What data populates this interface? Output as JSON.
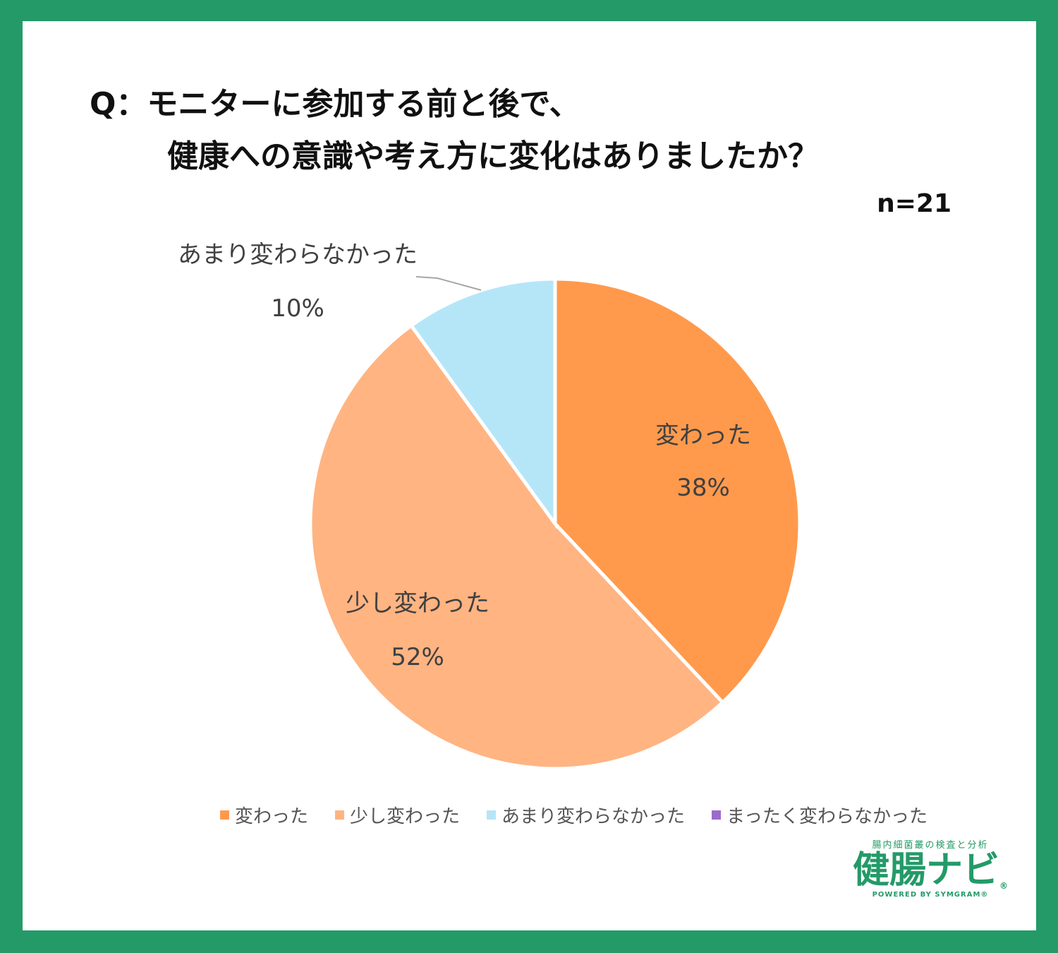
{
  "title": {
    "line1": "Q：モニターに参加する前と後で、",
    "line2": "健康への意識や考え方に変化はありましたか？",
    "n": "n=21"
  },
  "chart_data": {
    "type": "pie",
    "slices": [
      {
        "label": "変わった",
        "value": 38,
        "value_label": "38%",
        "color": "#ff9a4d"
      },
      {
        "label": "少し変わった",
        "value": 52,
        "value_label": "52%",
        "color": "#ffb482"
      },
      {
        "label": "あまり変わらなかった",
        "value": 10,
        "value_label": "10%",
        "color": "#b5e6f8"
      },
      {
        "label": "まったく変わらなかった",
        "value": 0,
        "value_label": "",
        "color": "#9b6bcc"
      }
    ],
    "legend": [
      "変わった",
      "少し変わった",
      "あまり変わらなかった",
      "まったく変わらなかった"
    ],
    "legend_position": "bottom"
  },
  "brand": {
    "tagline": "腸内細菌叢の検査と分析",
    "name": "健腸ナビ",
    "reg": "®",
    "powered": "POWERED BY SYMGRAM®"
  }
}
